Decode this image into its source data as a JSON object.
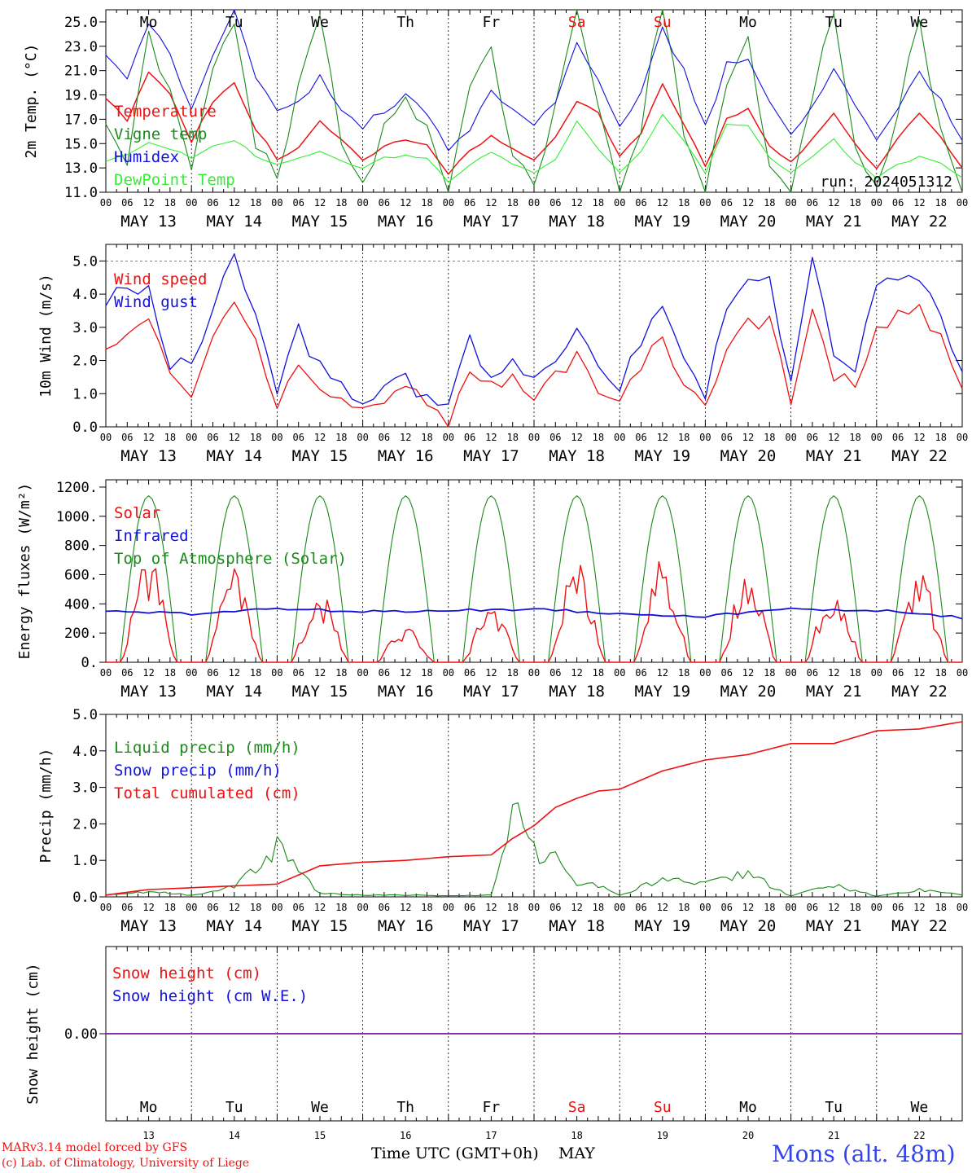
{
  "run_label": "run: 2024051312",
  "days": [
    "Mo",
    "Tu",
    "We",
    "Th",
    "Fr",
    "Sa",
    "Su",
    "Mo",
    "Tu",
    "We"
  ],
  "weekend_days": [
    "Sa",
    "Su"
  ],
  "date_labels": [
    "MAY 13",
    "MAY 14",
    "MAY 15",
    "MAY 16",
    "MAY 17",
    "MAY 18",
    "MAY 19",
    "MAY 20",
    "MAY 21",
    "MAY 22"
  ],
  "hour_labels": [
    "00",
    "06",
    "12",
    "18"
  ],
  "last_hour_label": "00",
  "day_numbers": [
    "13",
    "14",
    "15",
    "16",
    "17",
    "18",
    "19",
    "20",
    "21",
    "22"
  ],
  "x_title": "Time UTC (GMT+0h)",
  "month": "MAY",
  "credit_line1": "MARv3.14 model forced by GFS",
  "credit_line2": "(c) Lab. of Climatology, University of Liege",
  "location": "Mons (alt. 48m)",
  "colors": {
    "red": "#ee1111",
    "green": "#1a8a1a",
    "blue": "#1111dd",
    "lightgreen": "#33ee33",
    "purple": "#8833aa"
  },
  "chart_data": [
    {
      "type": "line",
      "ylabel": "2m Temp. (°C)",
      "ylim": [
        11,
        26
      ],
      "yticks": [
        "11.0",
        "13.0",
        "15.0",
        "17.0",
        "19.0",
        "21.0",
        "23.0",
        "25.0"
      ],
      "x_hours": [
        0,
        6,
        12,
        18,
        24,
        30,
        36,
        42,
        48,
        54,
        60,
        66,
        72,
        78,
        84,
        90,
        96,
        102,
        108,
        114,
        120,
        126,
        132,
        138,
        144,
        150,
        156,
        162,
        168,
        174,
        180,
        186,
        192,
        198,
        204,
        210,
        216,
        222,
        228,
        234,
        240
      ],
      "series": [
        {
          "name": "Temperature",
          "color": "red",
          "values": [
            18.8,
            16.8,
            20.8,
            19.0,
            15.2,
            18.5,
            20.0,
            16.2,
            13.8,
            14.6,
            17.0,
            15.3,
            13.5,
            14.8,
            15.2,
            14.8,
            12.6,
            14.5,
            15.6,
            14.6,
            13.6,
            15.6,
            18.6,
            17.5,
            14.0,
            15.8,
            19.9,
            16.5,
            13.2,
            17.0,
            18.0,
            14.8,
            13.5,
            15.3,
            17.4,
            15.0,
            12.9,
            15.5,
            17.5,
            15.5,
            12.9
          ]
        },
        {
          "name": "Vigne temp",
          "color": "green",
          "values": [
            16.5,
            14.0,
            23.5,
            20.0,
            13.0,
            20.5,
            25.5,
            14.8,
            12.0,
            19.5,
            26.0,
            14.5,
            11.0,
            16.5,
            19.5,
            16.0,
            11.0,
            20.0,
            23.0,
            14.5,
            11.0,
            18.5,
            26.0,
            18.5,
            11.0,
            16.5,
            27.0,
            16.0,
            11.0,
            20.5,
            24.0,
            13.5,
            11.0,
            18.5,
            26.0,
            15.0,
            11.0,
            17.5,
            25.5,
            15.5,
            11.0
          ]
        },
        {
          "name": "Humidex",
          "color": "blue",
          "values": [
            22.0,
            20.5,
            24.8,
            22.3,
            18.0,
            22.5,
            26.0,
            20.5,
            17.6,
            18.5,
            20.4,
            17.8,
            16.4,
            17.7,
            18.9,
            17.5,
            14.2,
            16.3,
            19.1,
            17.8,
            16.3,
            18.5,
            23.2,
            20.5,
            16.5,
            19.3,
            24.3,
            21.0,
            16.3,
            21.5,
            22.0,
            18.2,
            15.5,
            17.8,
            21.3,
            18.0,
            15.0,
            17.8,
            20.9,
            18.5,
            15.5
          ]
        },
        {
          "name": "DewPoint Temp",
          "color": "lightgreen",
          "values": [
            13.5,
            14.2,
            15.0,
            14.6,
            13.8,
            14.8,
            15.3,
            14.0,
            13.2,
            13.8,
            14.4,
            13.6,
            13.0,
            13.8,
            14.0,
            13.7,
            11.9,
            13.2,
            14.3,
            13.4,
            12.6,
            13.6,
            16.8,
            14.5,
            12.7,
            14.4,
            17.3,
            15.2,
            12.6,
            16.6,
            16.5,
            13.8,
            12.6,
            13.9,
            15.3,
            13.5,
            12.2,
            13.3,
            13.9,
            13.4,
            12.2
          ]
        }
      ]
    },
    {
      "type": "line",
      "ylabel": "10m Wind (m/s)",
      "ylim": [
        0,
        5.5
      ],
      "yticks": [
        "0.0",
        "1.0",
        "2.0",
        "3.0",
        "4.0",
        "5.0"
      ],
      "x_hours": [
        0,
        6,
        12,
        18,
        24,
        30,
        36,
        42,
        48,
        54,
        60,
        66,
        72,
        78,
        84,
        90,
        96,
        102,
        108,
        114,
        120,
        126,
        132,
        138,
        144,
        150,
        156,
        162,
        168,
        174,
        180,
        186,
        192,
        198,
        204,
        210,
        216,
        222,
        228,
        234,
        240
      ],
      "series": [
        {
          "name": "Wind speed",
          "color": "red",
          "values": [
            2.3,
            2.8,
            3.1,
            1.6,
            0.9,
            2.6,
            3.8,
            2.5,
            0.7,
            1.9,
            1.2,
            0.9,
            0.6,
            0.8,
            1.0,
            0.8,
            0.2,
            1.7,
            1.2,
            1.4,
            0.9,
            1.5,
            2.2,
            1.0,
            0.9,
            1.8,
            2.8,
            1.2,
            0.8,
            2.3,
            3.1,
            3.2,
            0.8,
            3.5,
            1.6,
            1.2,
            2.9,
            3.3,
            3.5,
            2.6,
            1.0
          ]
        },
        {
          "name": "Wind gust",
          "color": "blue",
          "values": [
            3.7,
            4.1,
            4.2,
            2.0,
            1.8,
            3.6,
            5.2,
            3.3,
            1.0,
            2.8,
            1.9,
            1.3,
            0.9,
            1.1,
            1.3,
            1.1,
            0.5,
            2.5,
            1.6,
            1.9,
            1.2,
            2.2,
            3.0,
            1.6,
            1.3,
            2.6,
            3.6,
            1.8,
            1.1,
            3.4,
            4.3,
            4.3,
            1.2,
            4.9,
            2.4,
            1.8,
            4.1,
            4.6,
            4.7,
            3.6,
            1.6
          ]
        }
      ]
    },
    {
      "type": "line",
      "ylabel": "Energy fluxes (W/m²)",
      "ylim": [
        0,
        1250
      ],
      "yticks": [
        "0.",
        "200.",
        "400.",
        "600.",
        "800.",
        "1000.",
        "1200."
      ],
      "solar_peaks": [
        720,
        650,
        490,
        270,
        390,
        690,
        740,
        640,
        560,
        630
      ],
      "toa_peak": 1140,
      "x_hours": [
        0,
        24,
        48,
        72,
        96,
        120,
        144,
        168,
        192,
        216,
        240
      ],
      "series": [
        {
          "name": "Solar",
          "color": "red",
          "values": [
            0,
            0,
            0,
            0,
            0,
            0,
            0,
            0,
            0,
            0,
            0
          ]
        },
        {
          "name": "Infrared",
          "color": "blue",
          "values": [
            350,
            330,
            370,
            345,
            355,
            365,
            335,
            315,
            365,
            355,
            305
          ]
        },
        {
          "name": "Top of Atmosphere (Solar)",
          "color": "green",
          "values": [
            0,
            0,
            0,
            0,
            0,
            0,
            0,
            0,
            0,
            0,
            0
          ]
        }
      ]
    },
    {
      "type": "line",
      "ylabel": "Precip (mm/h)",
      "ylim": [
        0,
        5.0
      ],
      "yticks": [
        "0.0",
        "1.0",
        "2.0",
        "3.0",
        "4.0",
        "5.0"
      ],
      "x_hours": [
        0,
        12,
        24,
        36,
        48,
        60,
        72,
        84,
        96,
        108,
        114,
        120,
        126,
        132,
        138,
        144,
        156,
        168,
        180,
        192,
        204,
        216,
        228,
        240
      ],
      "series": [
        {
          "name": "Liquid precip (mm/h)",
          "color": "green",
          "values": [
            0.05,
            0.15,
            0.05,
            0.3,
            1.4,
            0.1,
            0.05,
            0.05,
            0.03,
            0.05,
            2.45,
            1.3,
            1.1,
            0.4,
            0.35,
            0.05,
            0.5,
            0.4,
            0.7,
            0.02,
            0.35,
            0.02,
            0.2,
            0.05
          ]
        },
        {
          "name": "Snow precip (mm/h)",
          "color": "blue",
          "values": []
        },
        {
          "name": "Total cumulated (cm)",
          "color": "red",
          "values": [
            0.05,
            0.2,
            0.25,
            0.3,
            0.35,
            0.85,
            0.95,
            1.0,
            1.1,
            1.15,
            1.6,
            1.95,
            2.45,
            2.7,
            2.9,
            2.95,
            3.45,
            3.75,
            3.9,
            4.2,
            4.2,
            4.55,
            4.6,
            4.8
          ]
        }
      ]
    },
    {
      "type": "line",
      "ylabel": "Snow height (cm)",
      "ylim": [
        -1,
        1
      ],
      "yticks": [
        "0.00"
      ],
      "x_hours": [
        0,
        240
      ],
      "series": [
        {
          "name": "Snow height (cm)",
          "color": "red",
          "values": [
            0,
            0
          ]
        },
        {
          "name": "Snow height (cm W.E.)",
          "color": "blue",
          "values": [
            0,
            0
          ]
        }
      ]
    }
  ]
}
